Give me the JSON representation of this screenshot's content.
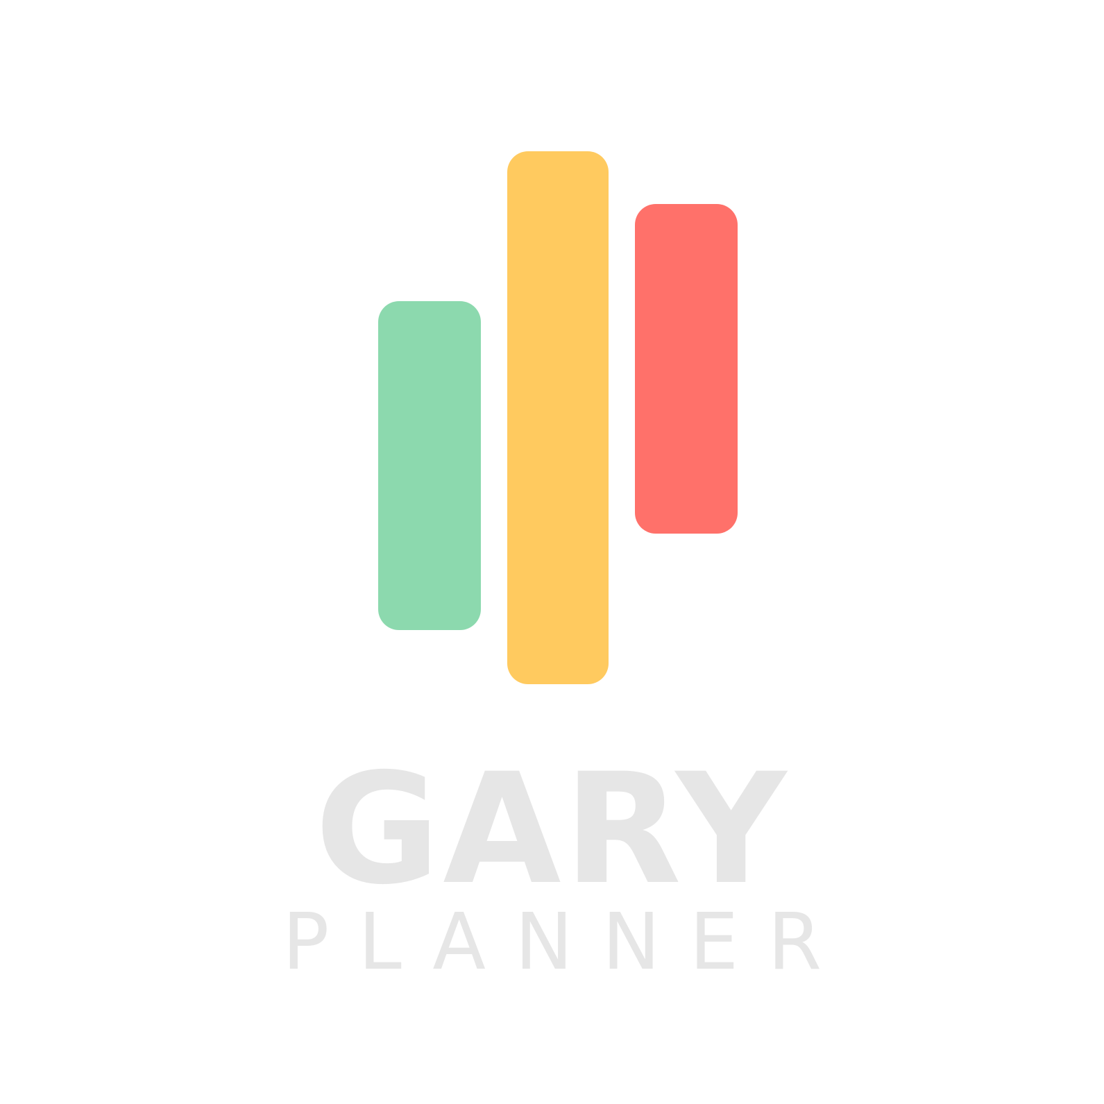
{
  "logo": {
    "title": "GARY",
    "subtitle": "PLANNER"
  },
  "bars": [
    {
      "name": "green",
      "color": "#8cd9ae"
    },
    {
      "name": "yellow",
      "color": "#ffca5f"
    },
    {
      "name": "red",
      "color": "#ff716a"
    }
  ],
  "colors": {
    "background": "#ffffff",
    "wordmark": "#e6e6e6"
  }
}
